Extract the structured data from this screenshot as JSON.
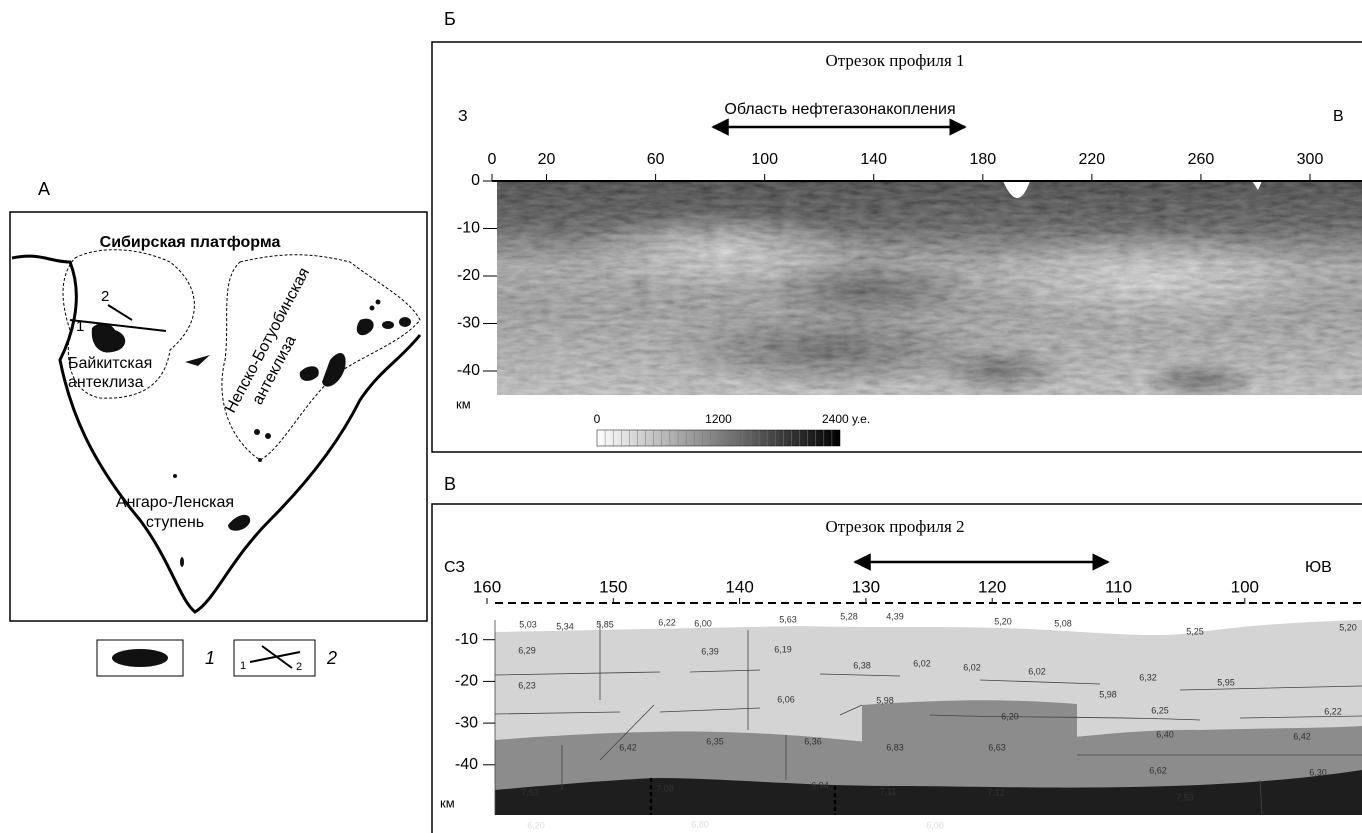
{
  "panel_a": {
    "label": "А",
    "title": "Сибирская платформа",
    "regions": [
      [
        "Байкитская",
        "антеклиза"
      ],
      [
        "Непско-Ботуобинская",
        "антеклиза"
      ],
      [
        "Ангаро-Ленская",
        "ступень"
      ]
    ],
    "profile_labels": [
      "1",
      "2"
    ],
    "legend": [
      {
        "number": "1"
      },
      {
        "number": "2",
        "ends": [
          "1",
          "2"
        ]
      }
    ]
  },
  "panel_b": {
    "label": "Б",
    "title": "Отрезок профиля 1",
    "west": "З",
    "east": "В",
    "zone": "Область нефтегазонакопления",
    "xlim": [
      0,
      320
    ],
    "ylim": [
      -45,
      0
    ],
    "xticks": [
      0,
      20,
      60,
      100,
      140,
      180,
      220,
      260,
      300
    ],
    "yticks": [
      0,
      -10,
      -20,
      -30,
      -40
    ],
    "depth_unit": "км",
    "colorbar": {
      "lim": [
        0,
        2400
      ],
      "ticks": [
        0,
        1200,
        {
          "value": 2400,
          "label": "2400 у.е."
        }
      ]
    }
  },
  "panel_c": {
    "label": "В",
    "title": "Отрезок профиля 2",
    "west": "СЗ",
    "east": "ЮВ",
    "xlim": [
      164,
      91
    ],
    "ylim": [
      -52,
      0
    ],
    "xticks": [
      160,
      150,
      140,
      130,
      120,
      110,
      100
    ],
    "yticks": [
      -10,
      -20,
      -30,
      -40
    ],
    "depth_unit": "км",
    "velocities": [
      "5,03",
      "5,34",
      "5,85",
      "6,22",
      "6,00",
      "5,63",
      "5,28",
      "4,39",
      "5,20",
      "5,08",
      "5,25",
      "5,20",
      "6,29",
      "6,39",
      "6,19",
      "6,38",
      "6,02",
      "6,02",
      "6,02",
      "6,32",
      "5,95",
      "5,98",
      "6,23",
      "6,06",
      "5,98",
      "6,20",
      "6,25",
      "6,22",
      "6,42",
      "6,35",
      "6,36",
      "6,83",
      "6,63",
      "6,40",
      "6,42",
      "7,53",
      "7,08",
      "6,94",
      "7,11",
      "7,12",
      "6,62",
      "6,30",
      "7,53",
      "6,20",
      "6,80",
      "6,00"
    ]
  }
}
